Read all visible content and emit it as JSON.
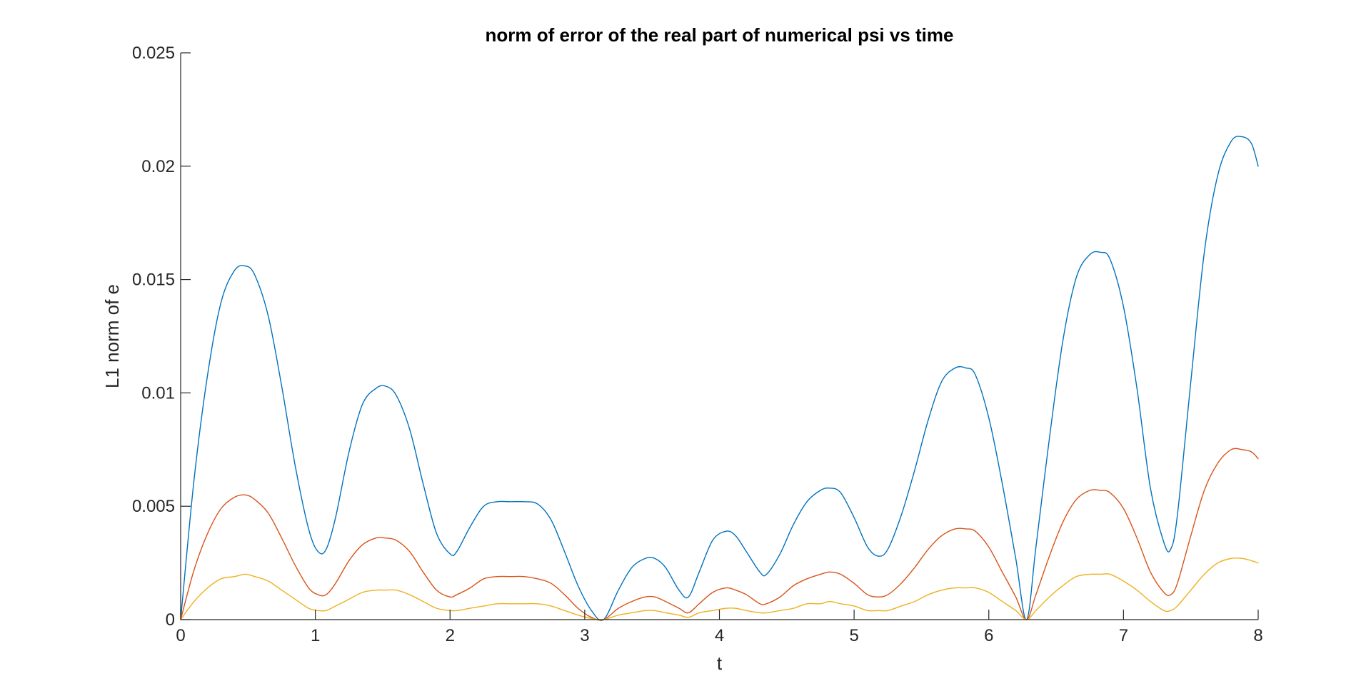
{
  "chart_data": {
    "type": "line",
    "title": "norm of error of the real part of numerical psi vs time",
    "xlabel": "t",
    "ylabel": "L1 norm of e",
    "xlim": [
      0,
      8
    ],
    "ylim": [
      0,
      0.025
    ],
    "xticks": [
      0,
      1,
      2,
      3,
      4,
      5,
      6,
      7,
      8
    ],
    "xtick_labels": [
      "0",
      "1",
      "2",
      "3",
      "4",
      "5",
      "6",
      "7",
      "8"
    ],
    "yticks": [
      0,
      0.005,
      0.01,
      0.015,
      0.02,
      0.025
    ],
    "ytick_labels": [
      "0",
      "0.005",
      "0.01",
      "0.015",
      "0.02",
      "0.025"
    ],
    "grid": false,
    "box": "left-bottom",
    "series": [
      {
        "color": "#0072BD",
        "x": [
          0,
          0.1,
          0.2,
          0.3,
          0.4,
          0.48,
          0.55,
          0.65,
          0.75,
          0.85,
          0.95,
          1.02,
          1.08,
          1.15,
          1.25,
          1.35,
          1.45,
          1.52,
          1.6,
          1.7,
          1.8,
          1.9,
          2.0,
          2.05,
          2.15,
          2.25,
          2.35,
          2.45,
          2.55,
          2.65,
          2.75,
          2.85,
          2.95,
          3.05,
          3.14,
          3.25,
          3.35,
          3.45,
          3.52,
          3.6,
          3.7,
          3.77,
          3.85,
          3.95,
          4.05,
          4.12,
          4.2,
          4.3,
          4.35,
          4.45,
          4.55,
          4.65,
          4.75,
          4.82,
          4.9,
          5.0,
          5.1,
          5.18,
          5.25,
          5.35,
          5.45,
          5.55,
          5.65,
          5.75,
          5.83,
          5.9,
          6.0,
          6.1,
          6.2,
          6.28,
          6.35,
          6.45,
          6.55,
          6.65,
          6.75,
          6.83,
          6.9,
          7.0,
          7.1,
          7.2,
          7.3,
          7.35,
          7.4,
          7.5,
          7.6,
          7.7,
          7.8,
          7.88,
          7.95,
          8.0
        ],
        "values": [
          0,
          0.0062,
          0.0108,
          0.014,
          0.0154,
          0.0156,
          0.0152,
          0.0134,
          0.0103,
          0.0068,
          0.004,
          0.003,
          0.0031,
          0.0045,
          0.0074,
          0.0095,
          0.0102,
          0.0103,
          0.0099,
          0.0084,
          0.006,
          0.0038,
          0.0029,
          0.003,
          0.0041,
          0.005,
          0.0052,
          0.0052,
          0.0052,
          0.0051,
          0.0044,
          0.003,
          0.0015,
          0.0004,
          0,
          0.0013,
          0.0023,
          0.0027,
          0.0027,
          0.0023,
          0.0013,
          0.001,
          0.0021,
          0.0035,
          0.0039,
          0.0037,
          0.003,
          0.0021,
          0.002,
          0.0029,
          0.0042,
          0.0052,
          0.0057,
          0.0058,
          0.0056,
          0.0045,
          0.0032,
          0.0028,
          0.0031,
          0.0046,
          0.0066,
          0.0088,
          0.0105,
          0.0111,
          0.0111,
          0.0108,
          0.0089,
          0.006,
          0.0027,
          0,
          0.0032,
          0.008,
          0.0123,
          0.0151,
          0.0161,
          0.0162,
          0.0159,
          0.0138,
          0.0102,
          0.0058,
          0.0034,
          0.0031,
          0.0046,
          0.0105,
          0.0162,
          0.0196,
          0.0211,
          0.0213,
          0.021,
          0.02
        ]
      },
      {
        "color": "#D95319",
        "x": [
          0,
          0.1,
          0.2,
          0.3,
          0.4,
          0.48,
          0.55,
          0.65,
          0.75,
          0.85,
          0.95,
          1.02,
          1.08,
          1.15,
          1.25,
          1.35,
          1.45,
          1.52,
          1.6,
          1.7,
          1.8,
          1.9,
          2.0,
          2.05,
          2.15,
          2.25,
          2.35,
          2.45,
          2.55,
          2.65,
          2.75,
          2.85,
          2.95,
          3.05,
          3.14,
          3.25,
          3.35,
          3.45,
          3.52,
          3.6,
          3.7,
          3.77,
          3.85,
          3.95,
          4.05,
          4.12,
          4.2,
          4.3,
          4.35,
          4.45,
          4.55,
          4.65,
          4.75,
          4.82,
          4.9,
          5.0,
          5.1,
          5.18,
          5.25,
          5.35,
          5.45,
          5.55,
          5.65,
          5.75,
          5.83,
          5.9,
          6.0,
          6.1,
          6.2,
          6.28,
          6.35,
          6.45,
          6.55,
          6.65,
          6.75,
          6.83,
          6.9,
          7.0,
          7.1,
          7.2,
          7.3,
          7.35,
          7.4,
          7.5,
          7.6,
          7.7,
          7.8,
          7.88,
          7.95,
          8.0
        ],
        "values": [
          0,
          0.0022,
          0.0038,
          0.0049,
          0.0054,
          0.0055,
          0.0053,
          0.0047,
          0.0036,
          0.0024,
          0.0014,
          0.0011,
          0.0011,
          0.0016,
          0.0026,
          0.0033,
          0.0036,
          0.0036,
          0.0035,
          0.003,
          0.0021,
          0.0013,
          0.001,
          0.0011,
          0.0014,
          0.0018,
          0.0019,
          0.0019,
          0.0019,
          0.0018,
          0.0016,
          0.0011,
          0.0005,
          0.0001,
          0,
          0.0005,
          0.0008,
          0.001,
          0.001,
          0.0008,
          0.0005,
          0.0003,
          0.0007,
          0.0012,
          0.0014,
          0.0013,
          0.0011,
          0.0007,
          0.0007,
          0.001,
          0.0015,
          0.0018,
          0.002,
          0.0021,
          0.002,
          0.0016,
          0.0011,
          0.001,
          0.0011,
          0.0016,
          0.0023,
          0.0031,
          0.0037,
          0.004,
          0.004,
          0.0039,
          0.0032,
          0.0021,
          0.001,
          0,
          0.0011,
          0.0028,
          0.0043,
          0.0053,
          0.0057,
          0.0057,
          0.0056,
          0.0049,
          0.0036,
          0.0021,
          0.0012,
          0.0011,
          0.0016,
          0.0037,
          0.0057,
          0.0069,
          0.0075,
          0.0075,
          0.0074,
          0.0071
        ]
      },
      {
        "color": "#EDB120",
        "x": [
          0,
          0.1,
          0.2,
          0.3,
          0.4,
          0.48,
          0.55,
          0.65,
          0.75,
          0.85,
          0.95,
          1.02,
          1.08,
          1.15,
          1.25,
          1.35,
          1.45,
          1.52,
          1.6,
          1.7,
          1.8,
          1.9,
          2.0,
          2.05,
          2.15,
          2.25,
          2.35,
          2.45,
          2.55,
          2.65,
          2.75,
          2.85,
          2.95,
          3.05,
          3.14,
          3.25,
          3.35,
          3.45,
          3.52,
          3.6,
          3.7,
          3.77,
          3.85,
          3.95,
          4.05,
          4.12,
          4.2,
          4.3,
          4.35,
          4.45,
          4.55,
          4.65,
          4.75,
          4.82,
          4.9,
          5.0,
          5.1,
          5.18,
          5.25,
          5.35,
          5.45,
          5.55,
          5.65,
          5.75,
          5.83,
          5.9,
          6.0,
          6.1,
          6.2,
          6.28,
          6.35,
          6.45,
          6.55,
          6.65,
          6.75,
          6.83,
          6.9,
          7.0,
          7.1,
          7.2,
          7.3,
          7.35,
          7.4,
          7.5,
          7.6,
          7.7,
          7.8,
          7.88,
          7.95,
          8.0
        ],
        "values": [
          0,
          0.0008,
          0.0014,
          0.0018,
          0.0019,
          0.002,
          0.0019,
          0.0017,
          0.0013,
          0.0009,
          0.0005,
          0.0004,
          0.0004,
          0.0006,
          0.0009,
          0.0012,
          0.0013,
          0.0013,
          0.0013,
          0.0011,
          0.0008,
          0.0005,
          0.0004,
          0.0004,
          0.0005,
          0.0006,
          0.0007,
          0.0007,
          0.0007,
          0.0007,
          0.0006,
          0.0004,
          0.0002,
          5e-05,
          0,
          0.0002,
          0.0003,
          0.0004,
          0.0004,
          0.0003,
          0.0002,
          0.0001,
          0.0003,
          0.0004,
          0.0005,
          0.0005,
          0.0004,
          0.0003,
          0.0003,
          0.0004,
          0.0005,
          0.0007,
          0.0007,
          0.0008,
          0.0007,
          0.0006,
          0.0004,
          0.0004,
          0.0004,
          0.0006,
          0.0008,
          0.0011,
          0.0013,
          0.0014,
          0.0014,
          0.0014,
          0.0012,
          0.0008,
          0.0004,
          0,
          0.0004,
          0.001,
          0.0015,
          0.0019,
          0.002,
          0.002,
          0.002,
          0.0017,
          0.0013,
          0.0008,
          0.0004,
          0.0004,
          0.0006,
          0.0013,
          0.002,
          0.0025,
          0.0027,
          0.0027,
          0.0026,
          0.0025
        ]
      }
    ]
  }
}
